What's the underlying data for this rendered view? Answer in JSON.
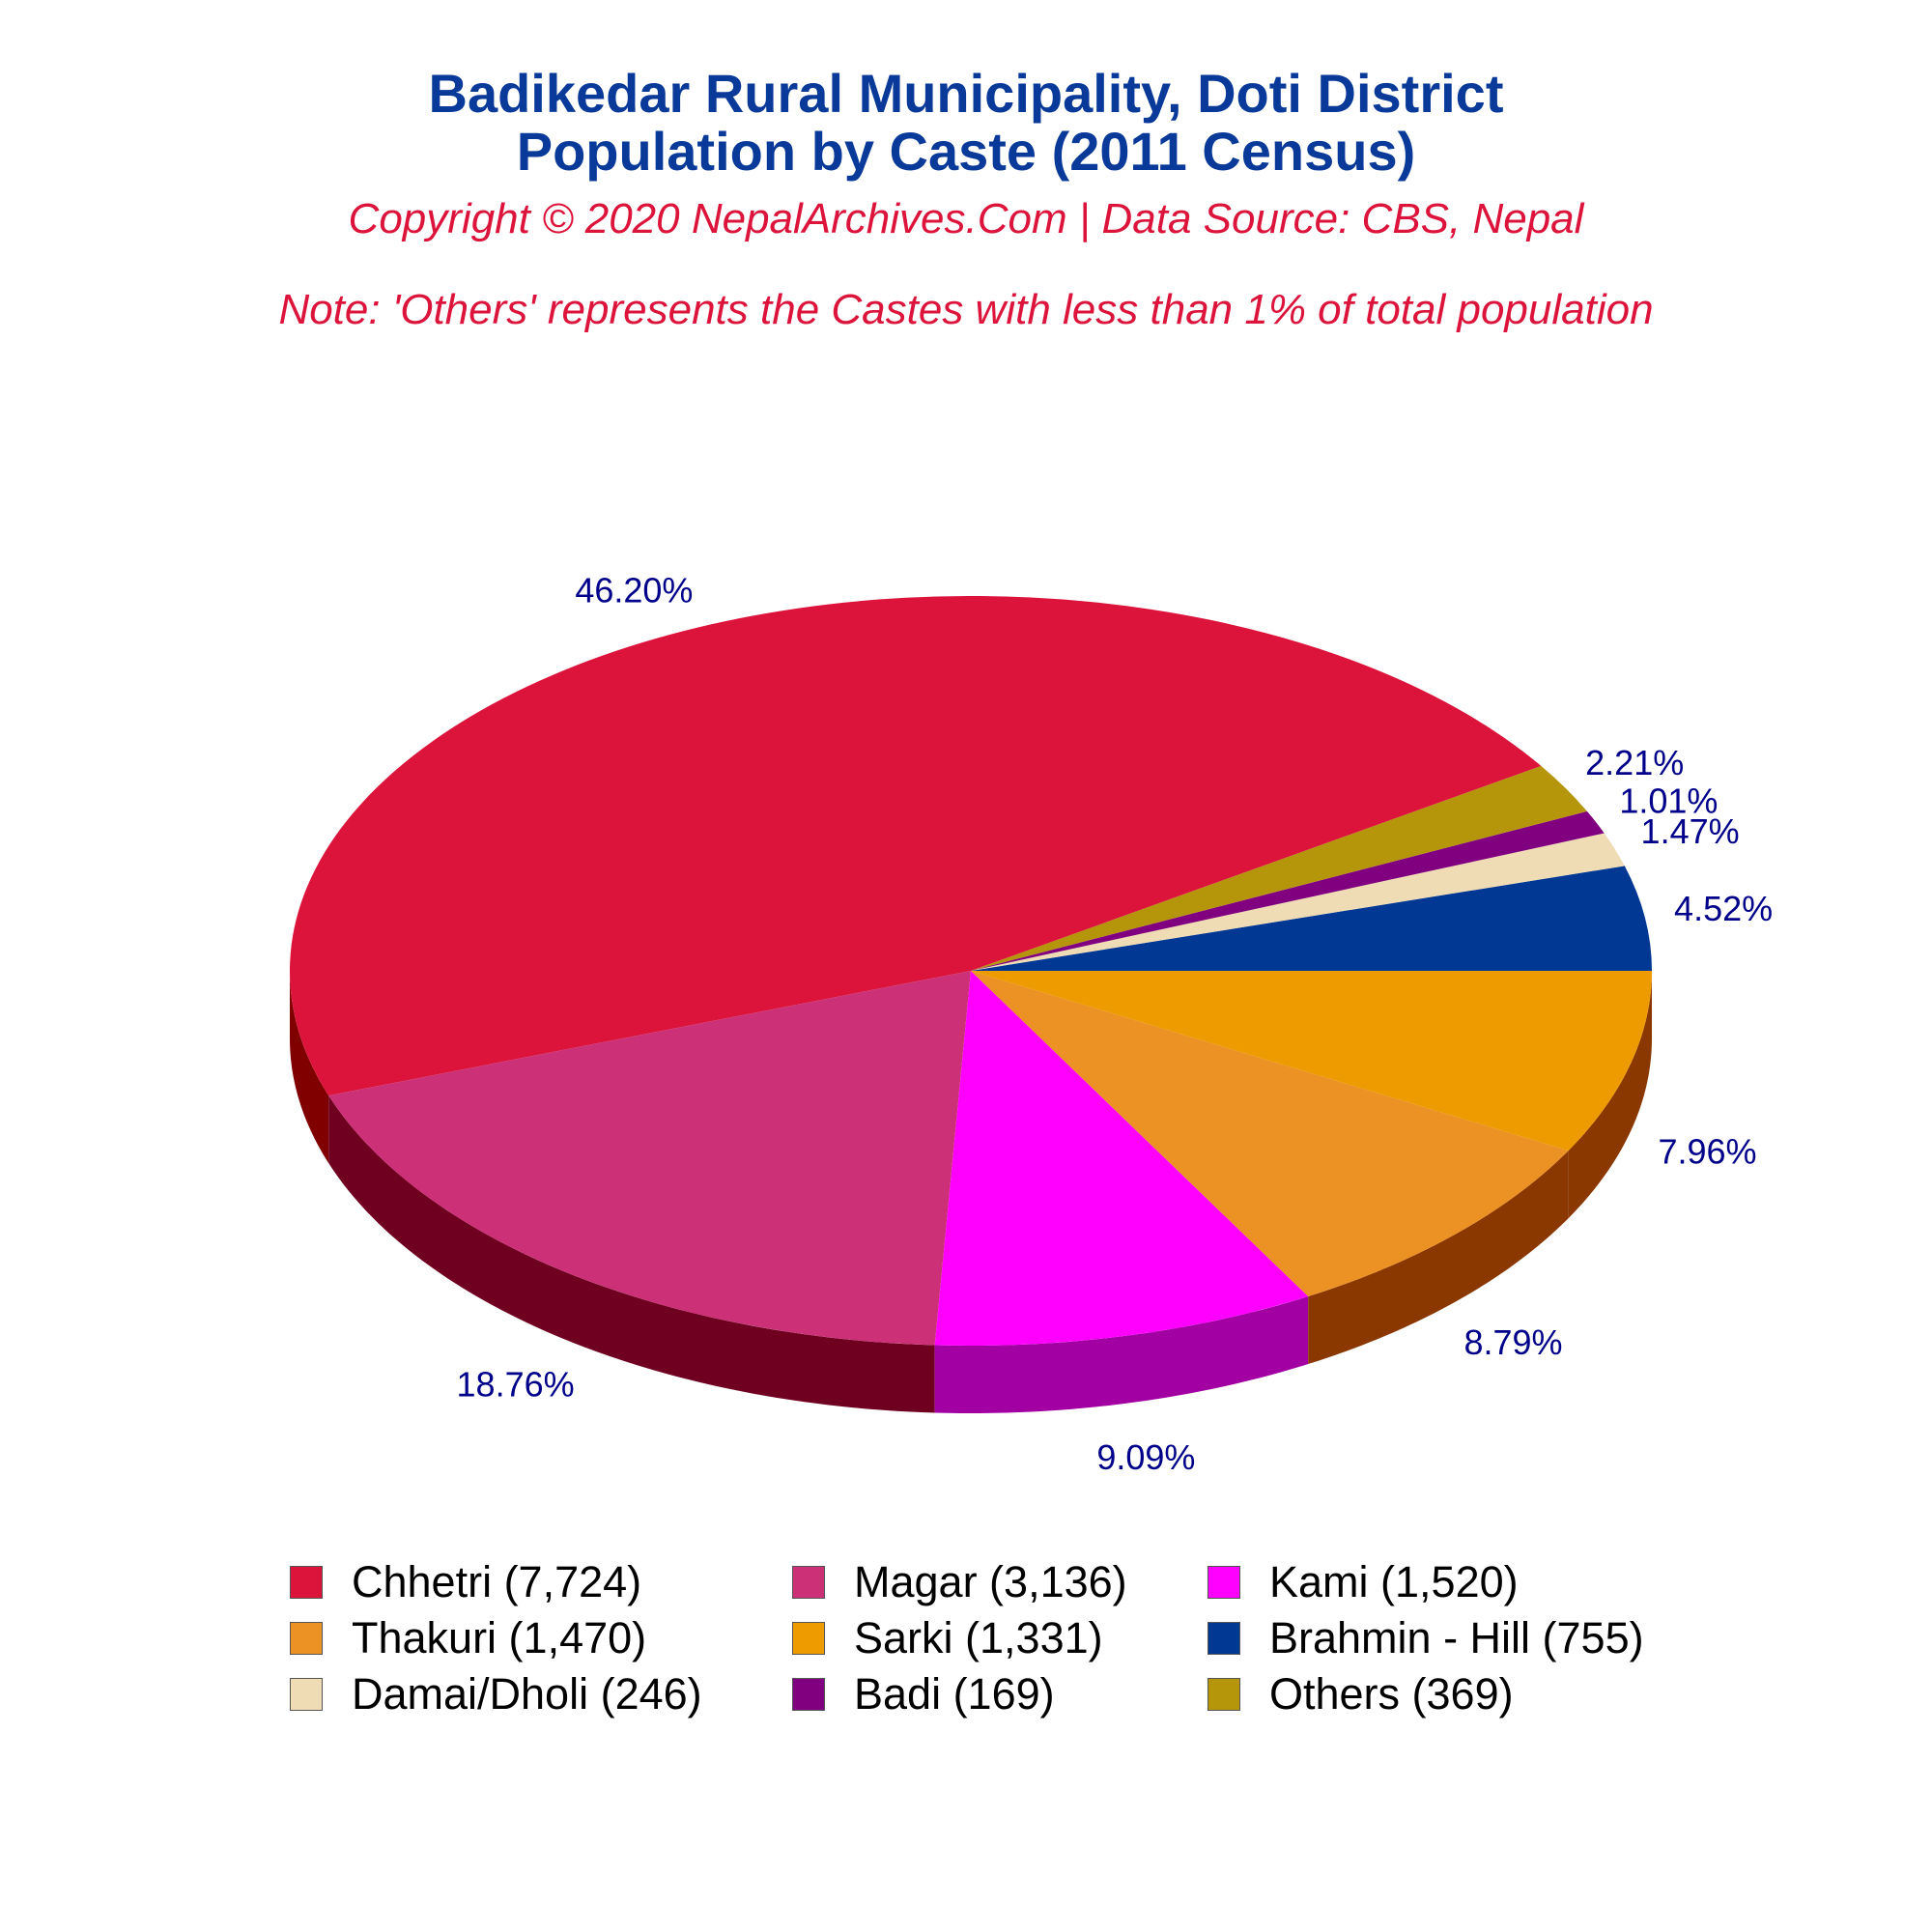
{
  "title_line1": "Badikedar Rural Municipality, Doti District",
  "title_line2": "Population by Caste (2011 Census)",
  "copyright": "Copyright © 2020 NepalArchives.Com | Data Source: CBS, Nepal",
  "note": "Note: 'Others' represents the Castes with less than 1% of total population",
  "chart_data": {
    "type": "pie",
    "style": "3d-exploded-none",
    "start": "counterclockwise-from-east",
    "slices": [
      {
        "name": "Brahmin - Hill",
        "value": 755,
        "percent_label": "4.52%",
        "legend": "Brahmin - Hill (755)",
        "color": "#003893",
        "dark": "#001f55"
      },
      {
        "name": "Damai/Dholi",
        "value": 246,
        "percent_label": "1.47%",
        "legend": "Damai/Dholi (246)",
        "color": "#f0dcb4",
        "dark": "#b8a27c"
      },
      {
        "name": "Badi",
        "value": 169,
        "percent_label": "1.01%",
        "legend": "Badi (169)",
        "color": "#800080",
        "dark": "#4d004d"
      },
      {
        "name": "Others",
        "value": 369,
        "percent_label": "2.21%",
        "legend": "Others (369)",
        "color": "#b5950a",
        "dark": "#7a6300"
      },
      {
        "name": "Chhetri",
        "value": 7724,
        "percent_label": "46.20%",
        "legend": "Chhetri (7,724)",
        "color": "#dc143c",
        "dark": "#800000"
      },
      {
        "name": "Magar",
        "value": 3136,
        "percent_label": "18.76%",
        "legend": "Magar (3,136)",
        "color": "#cc3077",
        "dark": "#700020"
      },
      {
        "name": "Kami",
        "value": 1520,
        "percent_label": "9.09%",
        "legend": "Kami (1,520)",
        "color": "#ff00ff",
        "dark": "#a300a3"
      },
      {
        "name": "Thakuri",
        "value": 1470,
        "percent_label": "8.79%",
        "legend": "Thakuri (1,470)",
        "color": "#ec9224",
        "dark": "#8b3800"
      },
      {
        "name": "Sarki",
        "value": 1331,
        "percent_label": "7.96%",
        "legend": "Sarki (1,331)",
        "color": "#ee9b00",
        "dark": "#8b3800"
      }
    ],
    "legend_order": [
      "Chhetri",
      "Magar",
      "Kami",
      "Thakuri",
      "Sarki",
      "Brahmin - Hill",
      "Damai/Dholi",
      "Badi",
      "Others"
    ],
    "label_color": "#00008b"
  }
}
